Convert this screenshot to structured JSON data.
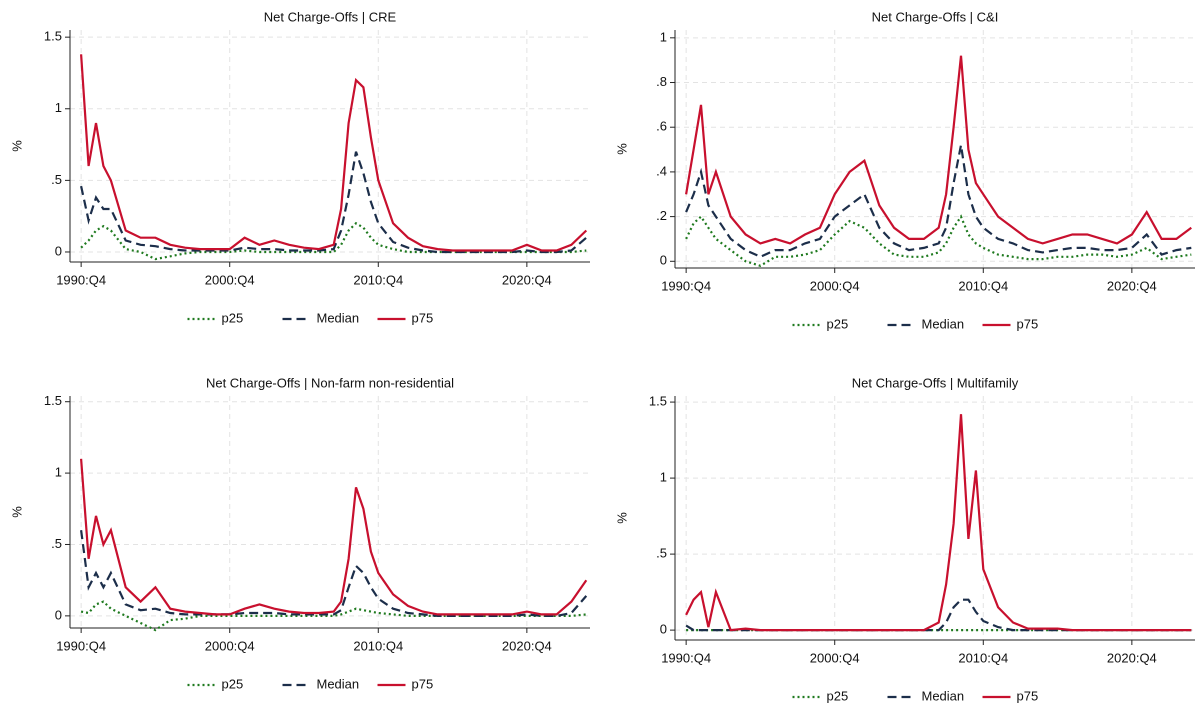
{
  "chart_data": [
    {
      "type": "line",
      "title": "Net Charge-Offs | CRE",
      "y_label": "%",
      "x": [
        "1990:Q4",
        "1991:Q2",
        "1991:Q4",
        "1992:Q2",
        "1992:Q4",
        "1993:Q4",
        "1994:Q4",
        "1995:Q4",
        "1996:Q4",
        "1997:Q4",
        "1998:Q4",
        "1999:Q4",
        "2000:Q4",
        "2001:Q4",
        "2002:Q4",
        "2003:Q4",
        "2004:Q4",
        "2005:Q4",
        "2006:Q4",
        "2007:Q4",
        "2008:Q2",
        "2008:Q4",
        "2009:Q2",
        "2009:Q4",
        "2010:Q2",
        "2010:Q4",
        "2011:Q4",
        "2012:Q4",
        "2013:Q4",
        "2014:Q4",
        "2015:Q4",
        "2016:Q4",
        "2017:Q4",
        "2018:Q4",
        "2019:Q4",
        "2020:Q4",
        "2021:Q4",
        "2022:Q4",
        "2023:Q4",
        "2024:Q4"
      ],
      "xlim": [
        "1990:Q1",
        "2025:Q1"
      ],
      "xticks": [
        "1990:Q4",
        "2000:Q4",
        "2010:Q4",
        "2020:Q4"
      ],
      "ylim": [
        -0.07,
        1.55
      ],
      "yticks": [
        0,
        {
          "value": 0.5,
          "label": ".5"
        },
        1,
        1.5
      ],
      "grid": true,
      "series": [
        {
          "name": "p25",
          "color": "#1f7a1f",
          "line_style": "dotted",
          "values": [
            0.03,
            0.08,
            0.15,
            0.18,
            0.15,
            0.02,
            0,
            -0.05,
            -0.03,
            -0.01,
            0,
            0,
            0,
            0.01,
            0,
            0,
            0,
            0,
            0,
            0,
            0.05,
            0.15,
            0.2,
            0.17,
            0.1,
            0.05,
            0.02,
            0,
            0,
            0,
            0,
            0,
            0,
            0,
            0,
            0,
            0,
            0,
            0,
            0.01
          ]
        },
        {
          "name": "Median",
          "color": "#1c2e4a",
          "line_style": "dashed",
          "values": [
            0.46,
            0.22,
            0.38,
            0.3,
            0.3,
            0.08,
            0.05,
            0.04,
            0.02,
            0.01,
            0.01,
            0.01,
            0.01,
            0.03,
            0.02,
            0.02,
            0.01,
            0.01,
            0.01,
            0.02,
            0.15,
            0.4,
            0.7,
            0.55,
            0.35,
            0.2,
            0.07,
            0.03,
            0.01,
            0,
            0,
            0,
            0,
            0,
            0,
            0.01,
            0,
            0,
            0.01,
            0.1
          ]
        },
        {
          "name": "p75",
          "color": "#c8102e",
          "line_style": "solid",
          "values": [
            1.38,
            0.6,
            0.9,
            0.6,
            0.5,
            0.15,
            0.1,
            0.1,
            0.05,
            0.03,
            0.02,
            0.02,
            0.02,
            0.1,
            0.05,
            0.08,
            0.05,
            0.03,
            0.02,
            0.05,
            0.3,
            0.9,
            1.2,
            1.15,
            0.8,
            0.5,
            0.2,
            0.1,
            0.04,
            0.02,
            0.01,
            0.01,
            0.01,
            0.01,
            0.01,
            0.05,
            0.01,
            0.01,
            0.05,
            0.15
          ]
        }
      ]
    },
    {
      "type": "line",
      "title": "Net Charge-Offs | C&I",
      "y_label": "%",
      "x": [
        "1990:Q4",
        "1991:Q2",
        "1991:Q4",
        "1992:Q2",
        "1992:Q4",
        "1993:Q4",
        "1994:Q4",
        "1995:Q4",
        "1996:Q4",
        "1997:Q4",
        "1998:Q4",
        "1999:Q4",
        "2000:Q4",
        "2001:Q4",
        "2002:Q4",
        "2003:Q4",
        "2004:Q4",
        "2005:Q4",
        "2006:Q4",
        "2007:Q4",
        "2008:Q2",
        "2008:Q4",
        "2009:Q2",
        "2009:Q4",
        "2010:Q2",
        "2010:Q4",
        "2011:Q4",
        "2012:Q4",
        "2013:Q4",
        "2014:Q4",
        "2015:Q4",
        "2016:Q4",
        "2017:Q4",
        "2018:Q4",
        "2019:Q4",
        "2020:Q4",
        "2021:Q4",
        "2022:Q4",
        "2023:Q4",
        "2024:Q4"
      ],
      "xlim": [
        "1990:Q1",
        "2025:Q1"
      ],
      "xticks": [
        "1990:Q4",
        "2000:Q4",
        "2010:Q4",
        "2020:Q4"
      ],
      "ylim": [
        -0.03,
        1.035
      ],
      "yticks": [
        0,
        {
          "value": 0.2,
          "label": ".2"
        },
        {
          "value": 0.4,
          "label": ".4"
        },
        {
          "value": 0.6,
          "label": ".6"
        },
        {
          "value": 0.8,
          "label": ".8"
        },
        1
      ],
      "grid": true,
      "series": [
        {
          "name": "p25",
          "color": "#1f7a1f",
          "line_style": "dotted",
          "values": [
            0.1,
            0.17,
            0.2,
            0.15,
            0.1,
            0.05,
            0,
            -0.02,
            0.02,
            0.02,
            0.03,
            0.05,
            0.12,
            0.18,
            0.15,
            0.08,
            0.03,
            0.02,
            0.02,
            0.04,
            0.08,
            0.15,
            0.2,
            0.12,
            0.08,
            0.06,
            0.03,
            0.02,
            0.01,
            0.01,
            0.02,
            0.02,
            0.03,
            0.03,
            0.02,
            0.03,
            0.06,
            0.01,
            0.02,
            0.03
          ]
        },
        {
          "name": "Median",
          "color": "#1c2e4a",
          "line_style": "dashed",
          "values": [
            0.22,
            0.3,
            0.4,
            0.25,
            0.2,
            0.1,
            0.05,
            0.02,
            0.05,
            0.05,
            0.08,
            0.1,
            0.2,
            0.25,
            0.3,
            0.15,
            0.08,
            0.05,
            0.06,
            0.08,
            0.15,
            0.35,
            0.52,
            0.3,
            0.2,
            0.15,
            0.1,
            0.08,
            0.05,
            0.04,
            0.05,
            0.06,
            0.06,
            0.05,
            0.05,
            0.06,
            0.12,
            0.03,
            0.05,
            0.06
          ]
        },
        {
          "name": "p75",
          "color": "#c8102e",
          "line_style": "solid",
          "values": [
            0.3,
            0.5,
            0.7,
            0.3,
            0.4,
            0.2,
            0.12,
            0.08,
            0.1,
            0.08,
            0.12,
            0.15,
            0.3,
            0.4,
            0.45,
            0.25,
            0.15,
            0.1,
            0.1,
            0.15,
            0.3,
            0.6,
            0.92,
            0.5,
            0.35,
            0.3,
            0.2,
            0.15,
            0.1,
            0.08,
            0.1,
            0.12,
            0.12,
            0.1,
            0.08,
            0.12,
            0.22,
            0.1,
            0.1,
            0.15
          ]
        }
      ]
    },
    {
      "type": "line",
      "title": "Net Charge-Offs | Non-farm non-residential",
      "y_label": "%",
      "x": [
        "1990:Q4",
        "1991:Q2",
        "1991:Q4",
        "1992:Q2",
        "1992:Q4",
        "1993:Q4",
        "1994:Q4",
        "1995:Q4",
        "1996:Q4",
        "1997:Q4",
        "1998:Q4",
        "1999:Q4",
        "2000:Q4",
        "2001:Q4",
        "2002:Q4",
        "2003:Q4",
        "2004:Q4",
        "2005:Q4",
        "2006:Q4",
        "2007:Q4",
        "2008:Q2",
        "2008:Q4",
        "2009:Q2",
        "2009:Q4",
        "2010:Q2",
        "2010:Q4",
        "2011:Q4",
        "2012:Q4",
        "2013:Q4",
        "2014:Q4",
        "2015:Q4",
        "2016:Q4",
        "2017:Q4",
        "2018:Q4",
        "2019:Q4",
        "2020:Q4",
        "2021:Q4",
        "2022:Q4",
        "2023:Q4",
        "2024:Q4"
      ],
      "xlim": [
        "1990:Q1",
        "2025:Q1"
      ],
      "xticks": [
        "1990:Q4",
        "2000:Q4",
        "2010:Q4",
        "2020:Q4"
      ],
      "ylim": [
        -0.085,
        1.54
      ],
      "yticks": [
        0,
        {
          "value": 0.5,
          "label": ".5"
        },
        1,
        1.5
      ],
      "grid": true,
      "series": [
        {
          "name": "p25",
          "color": "#1f7a1f",
          "line_style": "dotted",
          "values": [
            0.03,
            0.02,
            0.08,
            0.1,
            0.05,
            0,
            -0.05,
            -0.1,
            -0.03,
            -0.02,
            0,
            0,
            0,
            0,
            0,
            0,
            0,
            0,
            0,
            0,
            0.01,
            0.03,
            0.05,
            0.04,
            0.03,
            0.02,
            0.01,
            0,
            0,
            0,
            0,
            0,
            0,
            0,
            0,
            0,
            0,
            0,
            0,
            0.01
          ]
        },
        {
          "name": "Median",
          "color": "#1c2e4a",
          "line_style": "dashed",
          "values": [
            0.6,
            0.2,
            0.3,
            0.2,
            0.3,
            0.08,
            0.04,
            0.05,
            0.02,
            0.01,
            0.01,
            0.01,
            0.01,
            0.02,
            0.02,
            0.02,
            0.01,
            0.01,
            0.01,
            0.01,
            0.04,
            0.2,
            0.35,
            0.3,
            0.2,
            0.12,
            0.05,
            0.02,
            0.01,
            0,
            0,
            0,
            0,
            0,
            0,
            0.01,
            0,
            0,
            0.02,
            0.14
          ]
        },
        {
          "name": "p75",
          "color": "#c8102e",
          "line_style": "solid",
          "values": [
            1.1,
            0.4,
            0.7,
            0.5,
            0.6,
            0.2,
            0.1,
            0.2,
            0.05,
            0.03,
            0.02,
            0.01,
            0.01,
            0.05,
            0.08,
            0.05,
            0.03,
            0.02,
            0.02,
            0.03,
            0.1,
            0.4,
            0.9,
            0.75,
            0.45,
            0.3,
            0.15,
            0.07,
            0.03,
            0.01,
            0.01,
            0.01,
            0.01,
            0.01,
            0.01,
            0.03,
            0.01,
            0.01,
            0.1,
            0.25
          ]
        }
      ]
    },
    {
      "type": "line",
      "title": "Net Charge-Offs | Multifamily",
      "y_label": "%",
      "x": [
        "1990:Q4",
        "1991:Q2",
        "1991:Q4",
        "1992:Q2",
        "1992:Q4",
        "1993:Q4",
        "1994:Q4",
        "1995:Q4",
        "1996:Q4",
        "1997:Q4",
        "1998:Q4",
        "1999:Q4",
        "2000:Q4",
        "2001:Q4",
        "2002:Q4",
        "2003:Q4",
        "2004:Q4",
        "2005:Q4",
        "2006:Q4",
        "2007:Q4",
        "2008:Q2",
        "2008:Q4",
        "2009:Q2",
        "2009:Q4",
        "2010:Q2",
        "2010:Q4",
        "2011:Q4",
        "2012:Q4",
        "2013:Q4",
        "2014:Q4",
        "2015:Q4",
        "2016:Q4",
        "2017:Q4",
        "2018:Q4",
        "2019:Q4",
        "2020:Q4",
        "2021:Q4",
        "2022:Q4",
        "2023:Q4",
        "2024:Q4"
      ],
      "xlim": [
        "1990:Q1",
        "2025:Q1"
      ],
      "xticks": [
        "1990:Q4",
        "2000:Q4",
        "2010:Q4",
        "2020:Q4"
      ],
      "ylim": [
        -0.065,
        1.54
      ],
      "yticks": [
        0,
        {
          "value": 0.5,
          "label": ".5"
        },
        1,
        1.5
      ],
      "grid": true,
      "series": [
        {
          "name": "p25",
          "color": "#1f7a1f",
          "line_style": "dotted",
          "values": [
            0,
            0,
            0,
            0,
            0,
            0,
            0,
            0,
            0,
            0,
            0,
            0,
            0,
            0,
            0,
            0,
            0,
            0,
            0,
            0,
            0,
            0,
            0,
            0,
            0,
            0,
            0,
            0,
            0,
            0,
            0,
            0,
            0,
            0,
            0,
            0,
            0,
            0,
            0,
            0
          ]
        },
        {
          "name": "Median",
          "color": "#1c2e4a",
          "line_style": "dashed",
          "values": [
            0.03,
            0,
            0,
            0,
            0,
            0,
            0,
            0,
            0,
            0,
            0,
            0,
            0,
            0,
            0,
            0,
            0,
            0,
            0,
            0,
            0.05,
            0.15,
            0.2,
            0.2,
            0.12,
            0.06,
            0.02,
            0,
            0,
            0,
            0,
            0,
            0,
            0,
            0,
            0,
            0,
            0,
            0,
            0
          ]
        },
        {
          "name": "p75",
          "color": "#c8102e",
          "line_style": "solid",
          "values": [
            0.1,
            0.2,
            0.25,
            0.02,
            0.25,
            0,
            0.01,
            0,
            0,
            0,
            0,
            0,
            0,
            0,
            0,
            0,
            0,
            0,
            0,
            0.05,
            0.3,
            0.7,
            1.42,
            0.6,
            1.05,
            0.4,
            0.15,
            0.05,
            0.01,
            0.01,
            0.01,
            0,
            0,
            0,
            0,
            0,
            0,
            0,
            0,
            0
          ]
        }
      ]
    }
  ]
}
